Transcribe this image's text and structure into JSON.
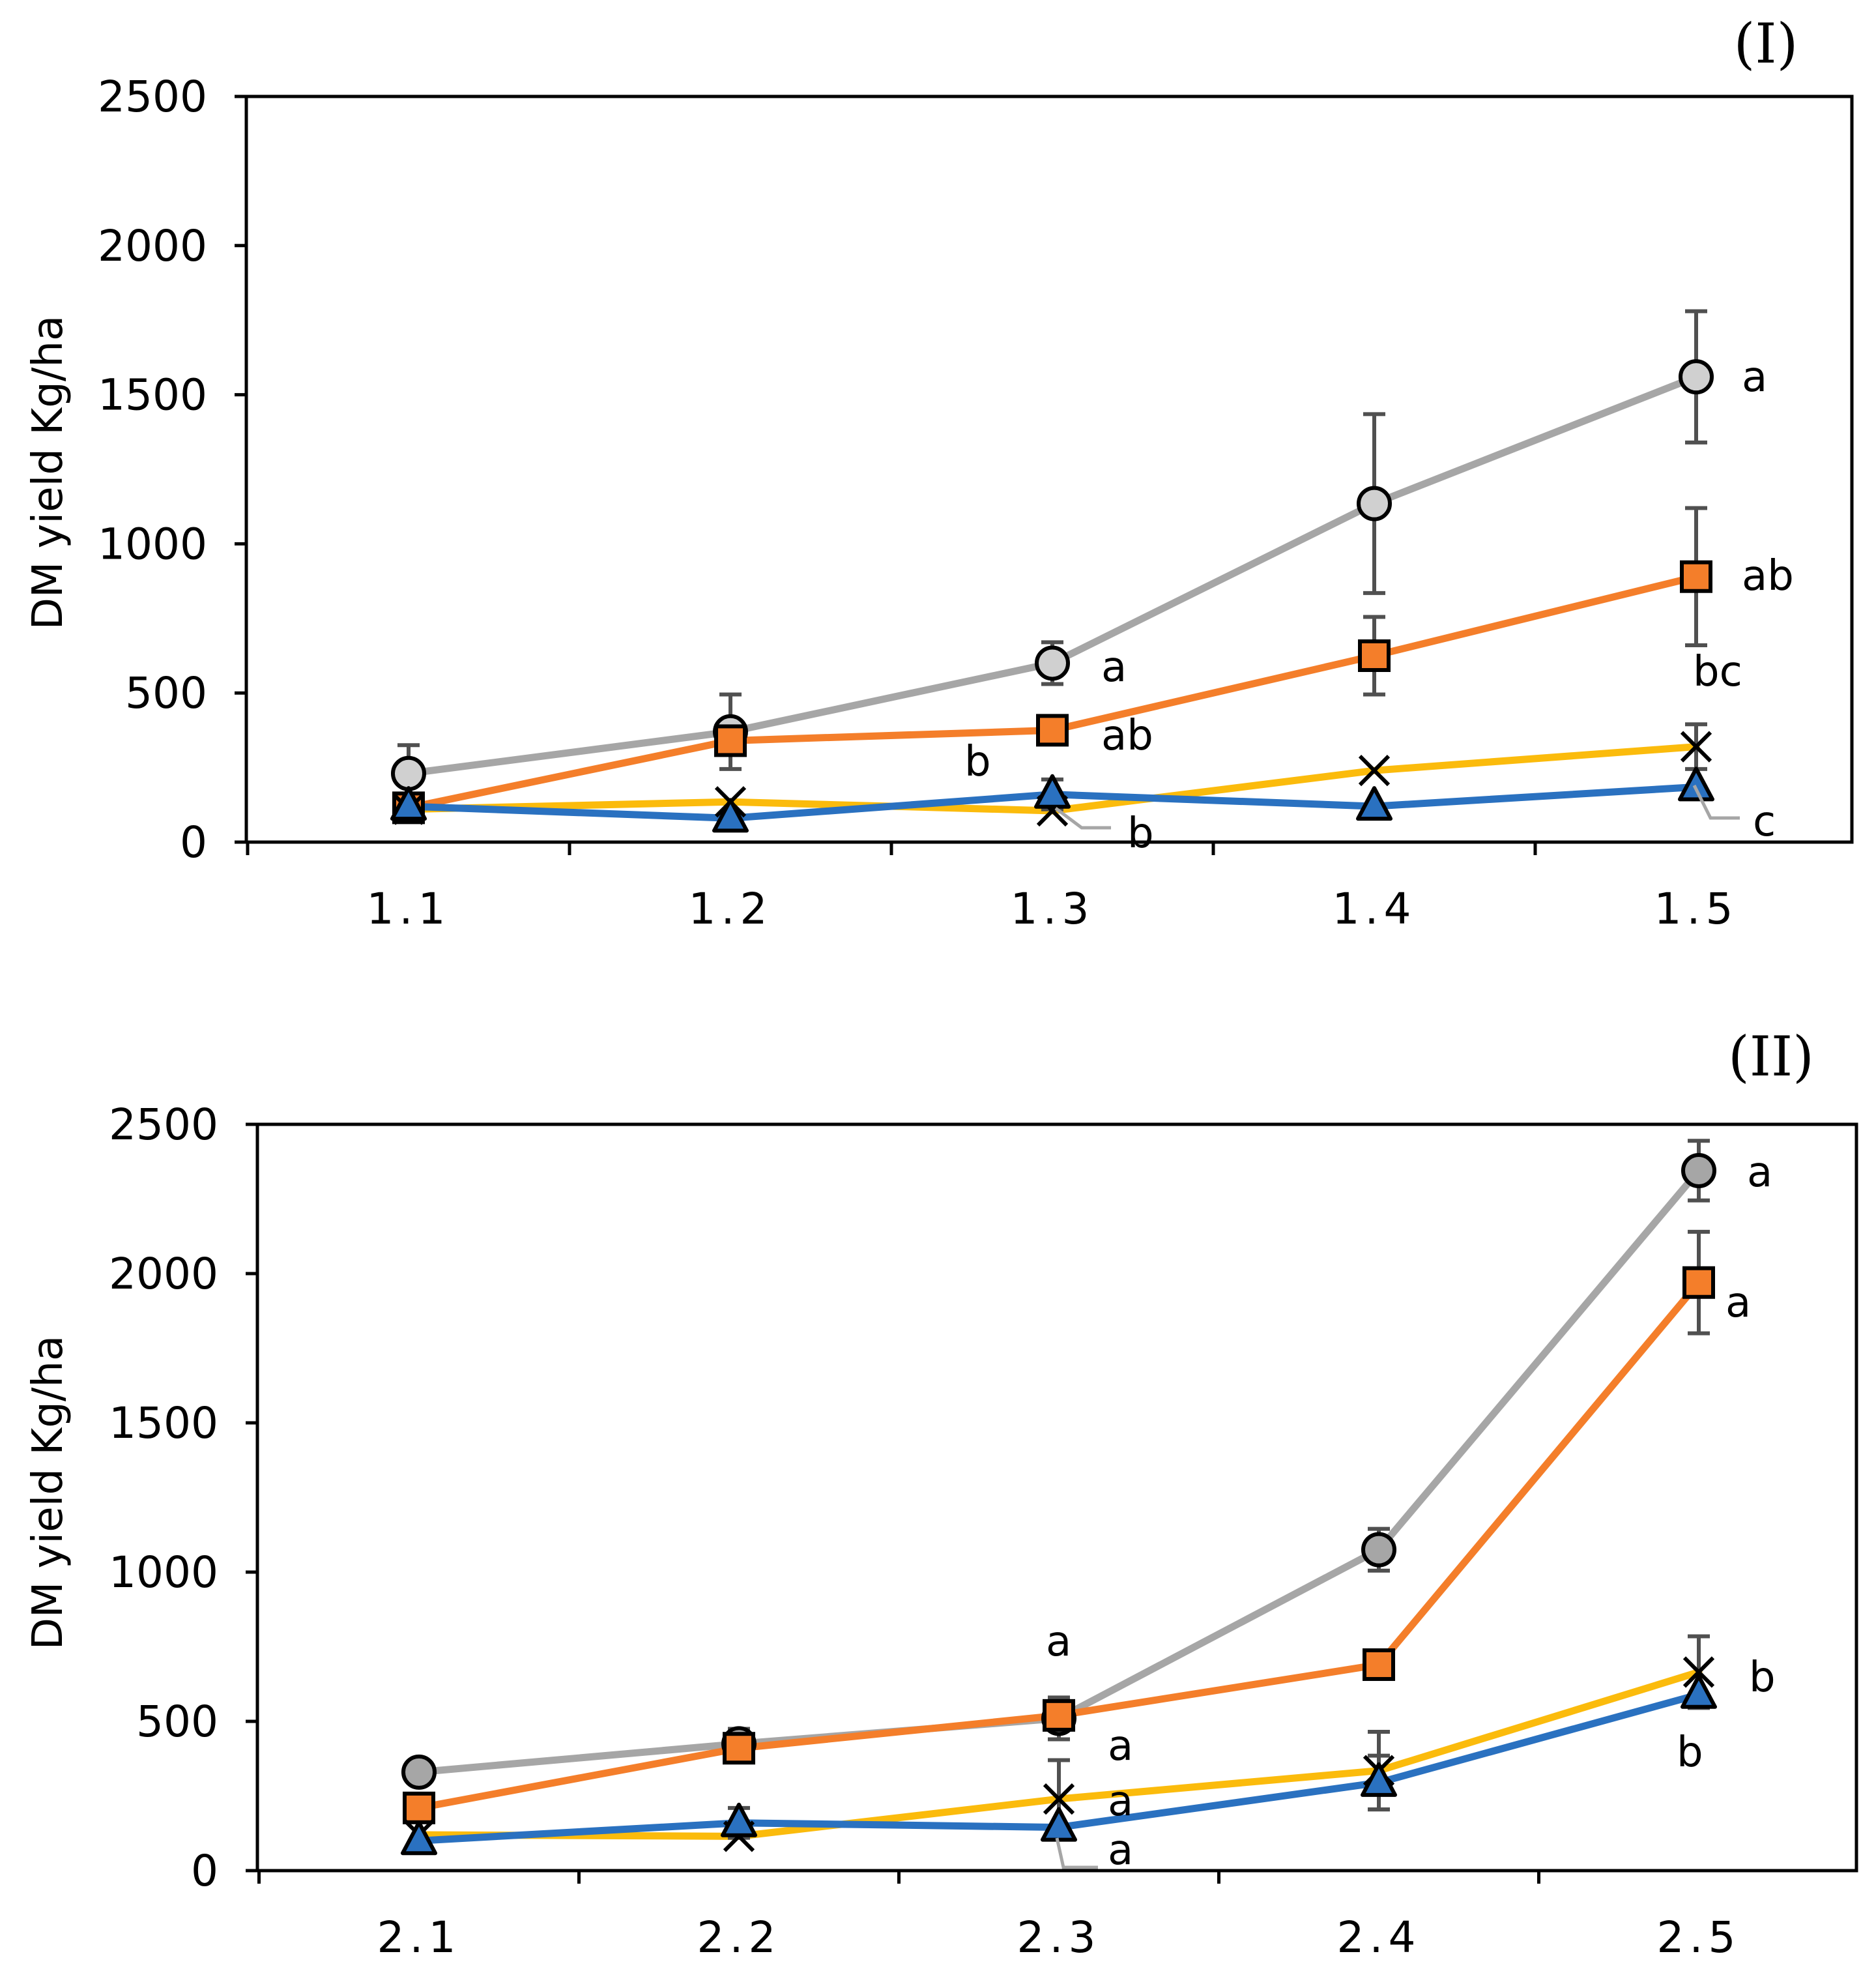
{
  "chart_data": [
    {
      "type": "line",
      "title": "(I)",
      "ylabel": "DM yield Kg/ha",
      "xlabel": "",
      "ylim": [
        0,
        2500
      ],
      "yticks": [
        "0",
        "500",
        "1000",
        "1500",
        "2000",
        "2500"
      ],
      "categories": [
        "1.1",
        "1.2",
        "1.3",
        "1.4",
        "1.5"
      ],
      "grid": false,
      "series": [
        {
          "name": "grey-circle",
          "color": "#a6a6a6",
          "marker": "circle",
          "marker_fill": "#d0d0d0",
          "values": [
            230,
            370,
            600,
            1135,
            1560
          ],
          "err": [
            95,
            125,
            70,
            300,
            220
          ]
        },
        {
          "name": "orange-square",
          "color": "#f47e2a",
          "marker": "square",
          "marker_fill": "#f47e2a",
          "values": [
            115,
            340,
            375,
            625,
            890
          ],
          "err": [
            0,
            0,
            0,
            130,
            230
          ]
        },
        {
          "name": "yellow-cross",
          "color": "#fbbb0c",
          "marker": "x",
          "marker_fill": "none",
          "values": [
            110,
            135,
            105,
            240,
            320
          ],
          "err": [
            0,
            0,
            0,
            0,
            75
          ]
        },
        {
          "name": "blue-triangle",
          "color": "#2a71c0",
          "marker": "triangle",
          "marker_fill": "#2a71c0",
          "values": [
            120,
            80,
            160,
            120,
            185
          ],
          "err": [
            0,
            0,
            50,
            0,
            0
          ]
        }
      ],
      "annotations": [
        "a",
        "ab",
        "bc",
        "c",
        "a",
        "ab",
        "b",
        "b"
      ]
    },
    {
      "type": "line",
      "title": "(II)",
      "ylabel": "DM yield Kg/ha",
      "xlabel": "",
      "ylim": [
        0,
        2500
      ],
      "yticks": [
        "0",
        "500",
        "1000",
        "1500",
        "2000",
        "2500"
      ],
      "categories": [
        "2.1",
        "2.2",
        "2.3",
        "2.4",
        "2.5"
      ],
      "grid": false,
      "series": [
        {
          "name": "grey-circle",
          "color": "#a6a6a6",
          "marker": "circle",
          "marker_fill": "#a6a6a6",
          "values": [
            330,
            425,
            510,
            1075,
            2345
          ],
          "err": [
            0,
            50,
            70,
            70,
            100
          ]
        },
        {
          "name": "orange-square",
          "color": "#f47e2a",
          "marker": "square",
          "marker_fill": "#f47e2a",
          "values": [
            210,
            410,
            520,
            690,
            1970
          ],
          "err": [
            0,
            0,
            0,
            0,
            170
          ]
        },
        {
          "name": "yellow-cross",
          "color": "#fbbb0c",
          "marker": "x",
          "marker_fill": "none",
          "values": [
            120,
            115,
            240,
            335,
            665
          ],
          "err": [
            0,
            0,
            130,
            130,
            120
          ]
        },
        {
          "name": "blue-triangle",
          "color": "#2a71c0",
          "marker": "triangle",
          "marker_fill": "#2a71c0",
          "values": [
            100,
            160,
            145,
            295,
            590
          ],
          "err": [
            0,
            50,
            0,
            90,
            0
          ]
        }
      ],
      "annotations": [
        "a",
        "a",
        "a",
        "a",
        "a",
        "a",
        "b",
        "b"
      ]
    }
  ]
}
